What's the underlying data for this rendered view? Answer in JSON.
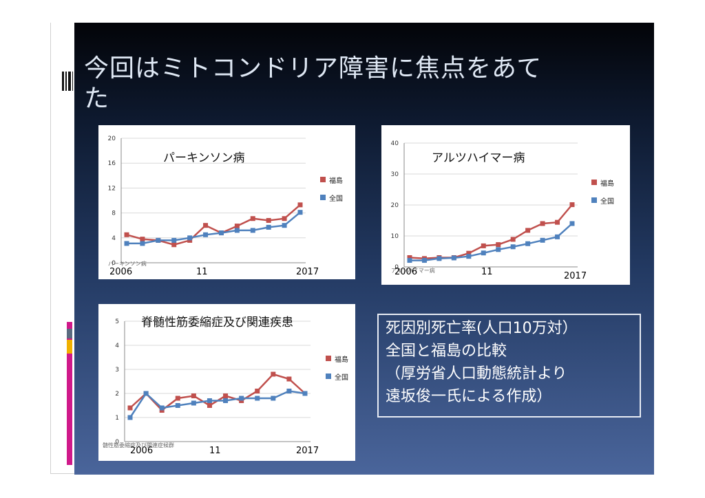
{
  "slide": {
    "title_line1": "今回はミトコンドリア障害に焦点をあて",
    "title_line2": "た"
  },
  "note": {
    "lines": [
      "死因別死亡率(人口10万対）",
      "全国と福島の比較",
      "（厚労省人口動態統計より",
      "遠坂俊一氏による作成）"
    ]
  },
  "colors": {
    "fukushima": "#c0504d",
    "national": "#4f81bd"
  },
  "chart_data": [
    {
      "type": "line",
      "title": "パーキンソン病",
      "caption": "パーキンソン病",
      "ylim": [
        0,
        20
      ],
      "yticks": [
        "0",
        "4",
        "8",
        "12",
        "16",
        "20"
      ],
      "x_labels": [
        "2006",
        "11",
        "2017"
      ],
      "x": [
        2006,
        2007,
        2008,
        2009,
        2010,
        2011,
        2012,
        2013,
        2014,
        2015,
        2016,
        2017
      ],
      "series": [
        {
          "name": "福島",
          "values": [
            4.5,
            3.8,
            3.6,
            2.9,
            3.6,
            6.0,
            4.8,
            5.9,
            7.1,
            6.8,
            7.1,
            9.3
          ]
        },
        {
          "name": "全国",
          "values": [
            3.1,
            3.1,
            3.6,
            3.6,
            4.0,
            4.5,
            4.8,
            5.2,
            5.2,
            5.7,
            6.0,
            8.1
          ]
        }
      ],
      "legend": "right"
    },
    {
      "type": "line",
      "title": "アルツハイマー病",
      "caption": "アルツハイマー病",
      "ylim": [
        0,
        40
      ],
      "yticks": [
        "0",
        "10",
        "20",
        "30",
        "40"
      ],
      "x_labels": [
        "2006",
        "11",
        "2017"
      ],
      "x": [
        2006,
        2007,
        2008,
        2009,
        2010,
        2011,
        2012,
        2013,
        2014,
        2015,
        2016,
        2017
      ],
      "series": [
        {
          "name": "福島",
          "values": [
            3.0,
            2.7,
            3.0,
            3.0,
            4.4,
            6.8,
            7.2,
            8.9,
            11.8,
            14.0,
            14.4,
            20.1
          ]
        },
        {
          "name": "全国",
          "values": [
            2.1,
            2.1,
            2.7,
            2.9,
            3.4,
            4.5,
            5.6,
            6.5,
            7.5,
            8.6,
            9.7,
            14.0
          ]
        }
      ],
      "legend": "right"
    },
    {
      "type": "line",
      "title": "脊髄性筋委縮症及び関連疾患",
      "caption": "髄性筋委縮症及び関連症候群",
      "ylim": [
        0,
        5
      ],
      "yticks": [
        "0",
        "1",
        "2",
        "3",
        "4",
        "5"
      ],
      "x_labels": [
        "2006",
        "11",
        "2017"
      ],
      "x": [
        2006,
        2007,
        2008,
        2009,
        2010,
        2011,
        2012,
        2013,
        2014,
        2015,
        2016,
        2017
      ],
      "series": [
        {
          "name": "福島",
          "values": [
            1.4,
            2.0,
            1.3,
            1.8,
            1.9,
            1.5,
            1.9,
            1.7,
            2.1,
            2.8,
            2.6,
            2.0
          ]
        },
        {
          "name": "全国",
          "values": [
            1.0,
            2.0,
            1.4,
            1.5,
            1.6,
            1.7,
            1.7,
            1.8,
            1.8,
            1.8,
            2.1,
            2.0
          ]
        }
      ],
      "legend": "right"
    }
  ]
}
